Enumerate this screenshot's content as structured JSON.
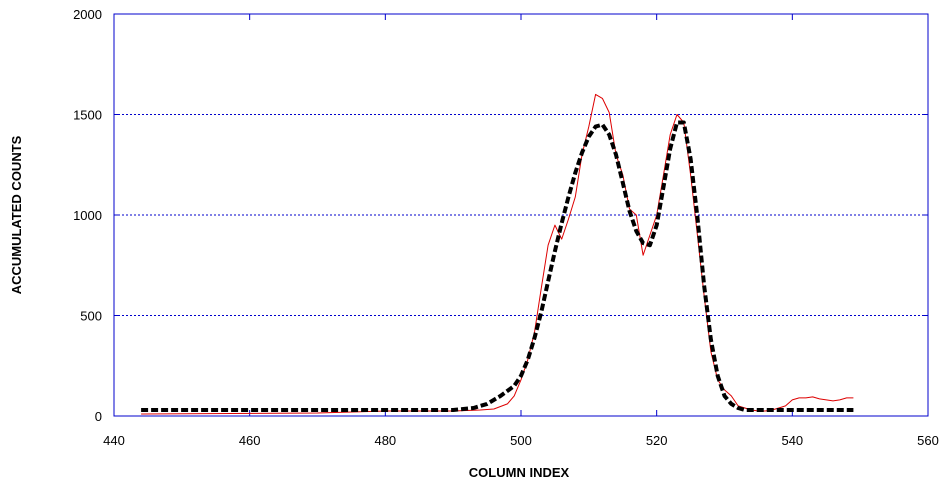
{
  "chart_data": {
    "type": "line",
    "title": "",
    "xlabel": "COLUMN INDEX",
    "ylabel": "ACCUMULATED COUNTS",
    "xlim": [
      440,
      560
    ],
    "ylim": [
      0,
      2000
    ],
    "x_ticks": [
      440,
      460,
      480,
      500,
      520,
      540,
      560
    ],
    "y_ticks": [
      0,
      500,
      1000,
      1500,
      2000
    ],
    "grid": "horizontal dotted",
    "legend": "none",
    "colors": {
      "axis": "#0000cc",
      "grid": "#0000cc",
      "measured": "#dd0000",
      "fit": "#000000"
    },
    "series": [
      {
        "style": "thin solid red",
        "x": [
          444,
          470,
          480,
          490,
          494,
          496,
          498,
          499,
          500,
          501,
          502,
          503,
          504,
          505,
          506,
          507,
          508,
          509,
          510,
          511,
          512,
          513,
          514,
          515,
          516,
          517,
          518,
          519,
          520,
          521,
          522,
          523,
          524,
          525,
          526,
          527,
          528,
          529,
          530,
          531,
          532,
          533,
          534,
          535,
          536,
          537,
          538,
          539,
          540,
          541,
          542,
          543,
          544,
          545,
          546,
          547,
          548,
          549
        ],
        "y": [
          10,
          15,
          25,
          25,
          30,
          35,
          60,
          100,
          180,
          280,
          420,
          640,
          850,
          950,
          880,
          980,
          1090,
          1300,
          1440,
          1600,
          1580,
          1510,
          1300,
          1200,
          1030,
          1000,
          800,
          900,
          1000,
          1200,
          1400,
          1500,
          1460,
          1200,
          900,
          600,
          320,
          180,
          130,
          100,
          50,
          40,
          30,
          25,
          25,
          30,
          40,
          50,
          80,
          90,
          90,
          95,
          85,
          80,
          75,
          80,
          90,
          90
        ]
      },
      {
        "style": "thick dashed black",
        "x": [
          444,
          460,
          480,
          490,
          493,
          495,
          497,
          499,
          500,
          501,
          502,
          503,
          504,
          505,
          506,
          507,
          508,
          509,
          510,
          511,
          512,
          513,
          514,
          515,
          516,
          517,
          518,
          519,
          520,
          521,
          522,
          523,
          524,
          525,
          526,
          527,
          528,
          529,
          530,
          531,
          532,
          533,
          535,
          540,
          549
        ],
        "y": [
          30,
          30,
          30,
          30,
          40,
          60,
          100,
          150,
          200,
          280,
          390,
          520,
          670,
          820,
          960,
          1090,
          1210,
          1310,
          1390,
          1440,
          1450,
          1400,
          1300,
          1160,
          1020,
          920,
          860,
          850,
          950,
          1140,
          1330,
          1460,
          1460,
          1280,
          990,
          650,
          380,
          200,
          100,
          60,
          40,
          30,
          30,
          30,
          30
        ]
      }
    ]
  }
}
